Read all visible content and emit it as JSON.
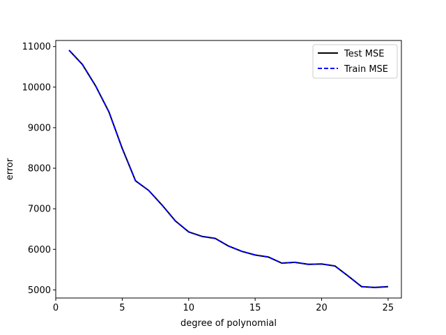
{
  "chart_data": {
    "type": "line",
    "title": "",
    "xlabel": "degree of polynomial",
    "ylabel": "error",
    "xlim": [
      0,
      26
    ],
    "ylim": [
      4800,
      11150
    ],
    "xticks": [
      0,
      5,
      10,
      15,
      20,
      25
    ],
    "yticks": [
      5000,
      6000,
      7000,
      8000,
      9000,
      10000,
      11000
    ],
    "grid": false,
    "legend": {
      "position": "top-right"
    },
    "x": [
      1,
      2,
      3,
      4,
      5,
      6,
      7,
      8,
      9,
      10,
      11,
      12,
      13,
      14,
      15,
      16,
      17,
      18,
      19,
      20,
      21,
      22,
      23,
      24,
      25
    ],
    "series": [
      {
        "name": "Test MSE",
        "color": "#000000",
        "style": "solid",
        "values": [
          10910,
          10560,
          10030,
          9390,
          8490,
          7690,
          7450,
          7090,
          6700,
          6430,
          6320,
          6270,
          6080,
          5950,
          5860,
          5810,
          5660,
          5680,
          5630,
          5640,
          5590,
          5340,
          5080,
          5060,
          5080
        ]
      },
      {
        "name": "Train MSE",
        "color": "#0000ff",
        "style": "dashed",
        "values": [
          10910,
          10560,
          10030,
          9390,
          8490,
          7690,
          7450,
          7090,
          6700,
          6430,
          6320,
          6270,
          6080,
          5950,
          5860,
          5810,
          5660,
          5680,
          5630,
          5640,
          5590,
          5340,
          5080,
          5060,
          5080
        ]
      }
    ]
  }
}
